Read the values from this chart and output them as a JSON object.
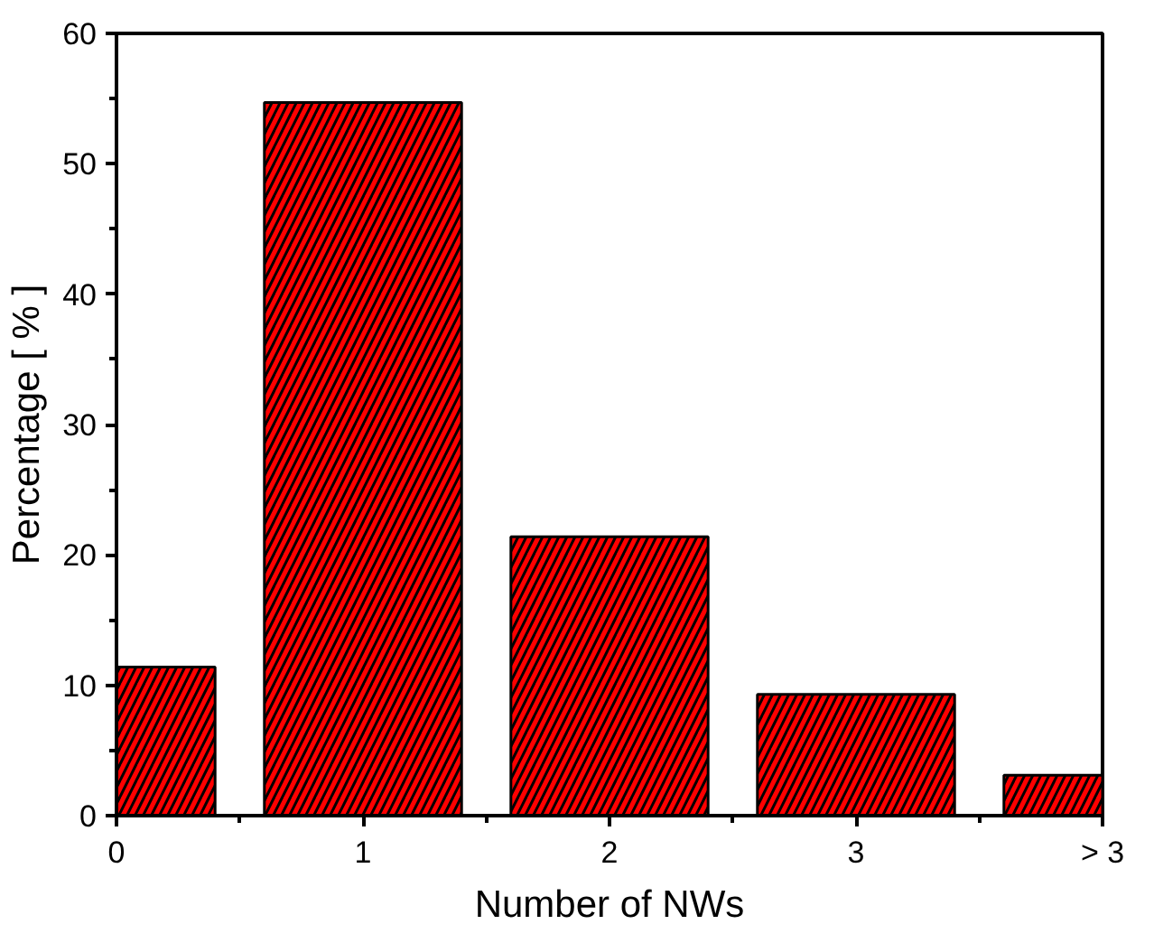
{
  "chart_data": {
    "type": "bar",
    "xlabel": "Number of NWs",
    "ylabel": "Percentage [ % ]",
    "categories": [
      "0",
      "1",
      "2",
      "3",
      "> 3"
    ],
    "values": [
      11.4,
      54.7,
      21.4,
      9.3,
      3.1
    ],
    "color": "#ff0000",
    "ylim": [
      0,
      60
    ],
    "yticks": [
      0,
      10,
      20,
      30,
      40,
      50,
      60
    ],
    "grid": false
  }
}
